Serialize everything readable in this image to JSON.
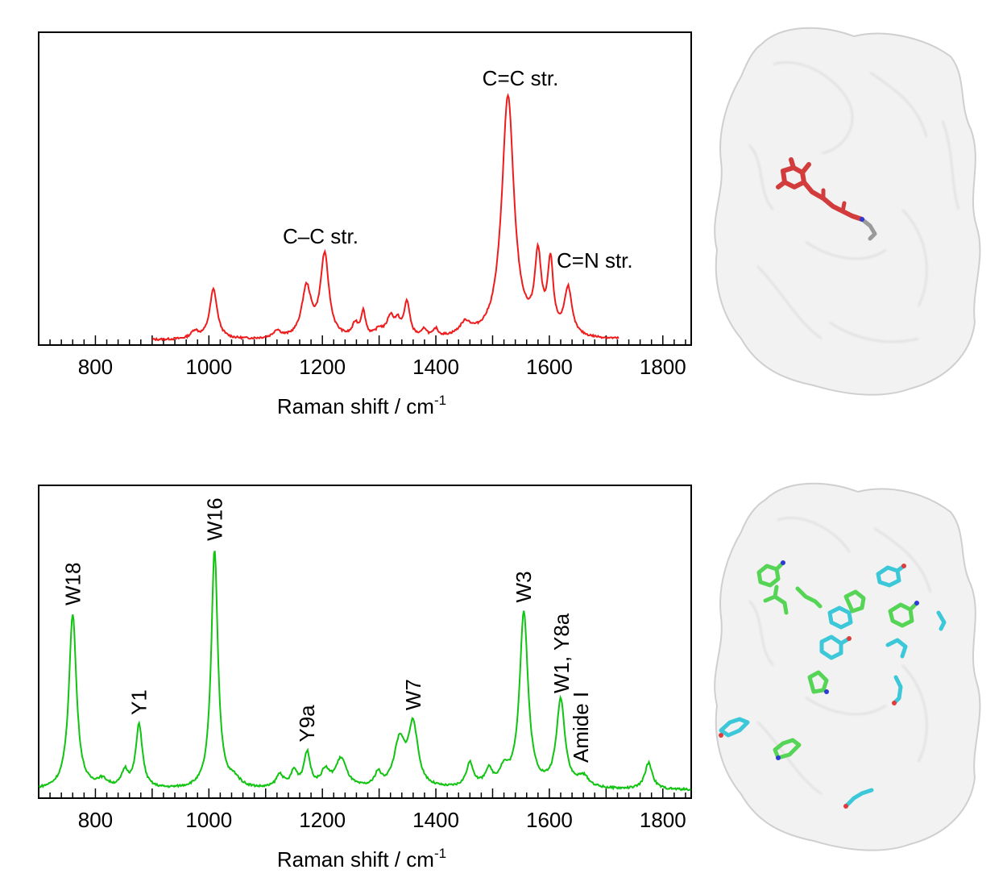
{
  "chart_data": [
    {
      "type": "line",
      "title": "",
      "xlabel": "Raman shift / cm",
      "xlabel_superscript": "-1",
      "ylabel": "",
      "xlim": [
        700,
        1850
      ],
      "xticks": [
        800,
        1000,
        1200,
        1400,
        1600,
        1800
      ],
      "y_ticks_shown": false,
      "grid": false,
      "series": [
        {
          "color": "#ee1c1c",
          "baseline": 0.02,
          "x_range": [
            900,
            1722
          ],
          "peaks": [
            {
              "x": 975,
              "h": 0.03,
              "w": 8
            },
            {
              "x": 1008,
              "h": 0.2,
              "w": 8
            },
            {
              "x": 1120,
              "h": 0.03,
              "w": 8
            },
            {
              "x": 1172,
              "h": 0.2,
              "w": 10
            },
            {
              "x": 1204,
              "h": 0.33,
              "w": 9
            },
            {
              "x": 1258,
              "h": 0.05,
              "w": 6
            },
            {
              "x": 1272,
              "h": 0.1,
              "w": 5
            },
            {
              "x": 1300,
              "h": 0.03,
              "w": 8
            },
            {
              "x": 1320,
              "h": 0.08,
              "w": 8
            },
            {
              "x": 1333,
              "h": 0.05,
              "w": 6
            },
            {
              "x": 1349,
              "h": 0.14,
              "w": 6
            },
            {
              "x": 1380,
              "h": 0.03,
              "w": 5
            },
            {
              "x": 1400,
              "h": 0.03,
              "w": 5
            },
            {
              "x": 1452,
              "h": 0.05,
              "w": 12
            },
            {
              "x": 1527,
              "h": 0.97,
              "w": 13
            },
            {
              "x": 1580,
              "h": 0.3,
              "w": 7
            },
            {
              "x": 1602,
              "h": 0.28,
              "w": 6
            },
            {
              "x": 1633,
              "h": 0.19,
              "w": 8
            }
          ]
        }
      ],
      "annotations": [
        {
          "text": "C=C str.",
          "x": 1525,
          "rotated": false
        },
        {
          "text": "C–C str.",
          "x": 1205,
          "rotated": false
        },
        {
          "text": "C=N str.",
          "x": 1640,
          "rotated": false
        }
      ]
    },
    {
      "type": "line",
      "title": "",
      "xlabel": "Raman shift / cm",
      "xlabel_superscript": "-1",
      "ylabel": "",
      "xlim": [
        700,
        1850
      ],
      "xticks": [
        800,
        1000,
        1200,
        1400,
        1600,
        1800
      ],
      "y_ticks_shown": false,
      "grid": false,
      "series": [
        {
          "color": "#11c411",
          "baseline": 0.03,
          "x_range": [
            700,
            1850
          ],
          "peaks": [
            {
              "x": 760,
              "h": 0.66,
              "w": 8
            },
            {
              "x": 812,
              "h": 0.03,
              "w": 12
            },
            {
              "x": 852,
              "h": 0.06,
              "w": 7
            },
            {
              "x": 877,
              "h": 0.24,
              "w": 7
            },
            {
              "x": 1010,
              "h": 0.9,
              "w": 7
            },
            {
              "x": 1045,
              "h": 0.03,
              "w": 12
            },
            {
              "x": 1125,
              "h": 0.05,
              "w": 8
            },
            {
              "x": 1150,
              "h": 0.06,
              "w": 7
            },
            {
              "x": 1173,
              "h": 0.13,
              "w": 7
            },
            {
              "x": 1205,
              "h": 0.06,
              "w": 9
            },
            {
              "x": 1233,
              "h": 0.11,
              "w": 12
            },
            {
              "x": 1298,
              "h": 0.05,
              "w": 7
            },
            {
              "x": 1336,
              "h": 0.17,
              "w": 12
            },
            {
              "x": 1360,
              "h": 0.23,
              "w": 10
            },
            {
              "x": 1460,
              "h": 0.09,
              "w": 8
            },
            {
              "x": 1493,
              "h": 0.06,
              "w": 8
            },
            {
              "x": 1520,
              "h": 0.06,
              "w": 10
            },
            {
              "x": 1555,
              "h": 0.66,
              "w": 9
            },
            {
              "x": 1620,
              "h": 0.33,
              "w": 9
            },
            {
              "x": 1660,
              "h": 0.04,
              "w": 12
            },
            {
              "x": 1775,
              "h": 0.1,
              "w": 8
            }
          ]
        }
      ],
      "annotations": [
        {
          "text": "W18",
          "x": 760,
          "rotated": true
        },
        {
          "text": "Y1",
          "x": 877,
          "rotated": true
        },
        {
          "text": "W16",
          "x": 1010,
          "rotated": true
        },
        {
          "text": "Y9a",
          "x": 1173,
          "rotated": true
        },
        {
          "text": "W7",
          "x": 1360,
          "rotated": true
        },
        {
          "text": "W3",
          "x": 1555,
          "rotated": true
        },
        {
          "text": "W1, Y8a",
          "x": 1620,
          "rotated": true
        },
        {
          "text": "Amide I",
          "x": 1660,
          "rotated": true
        }
      ]
    }
  ],
  "figure": {
    "protein_panels": [
      {
        "surface_color": "#f2f2f2",
        "ligand_color": "#d23c3c",
        "tail_color": "#9a9a9a"
      },
      {
        "surface_color": "#f2f2f2",
        "stick_colors": [
          "#55d455",
          "#3cc8d8"
        ],
        "atom_colors": [
          "#2d3ad8",
          "#e03c3c"
        ]
      }
    ]
  }
}
